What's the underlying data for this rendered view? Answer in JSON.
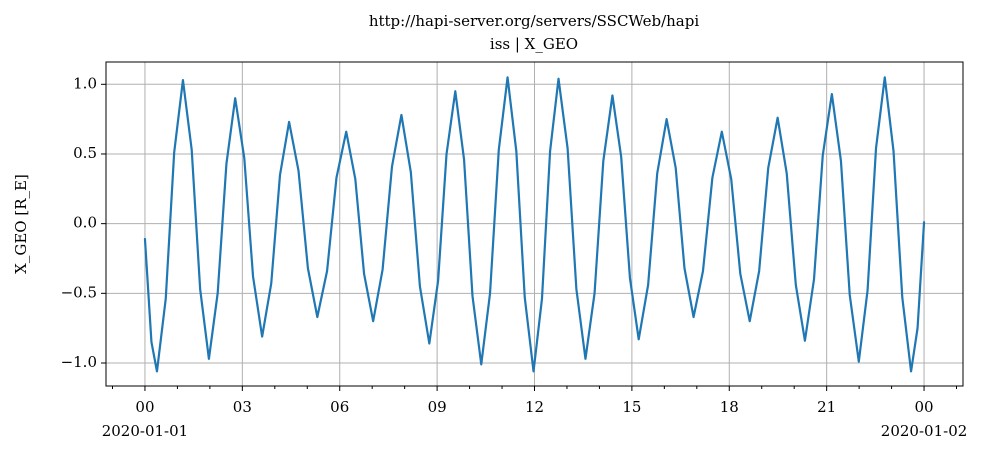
{
  "chart_data": {
    "type": "line",
    "title": "http://hapi-server.org/servers/SSCWeb/hapi",
    "subtitle": "iss | X_GEO",
    "ylabel": "X_GEO [R_E]",
    "color": "#1f77b4",
    "grid": true,
    "xlim": [
      -1.2,
      25.2
    ],
    "ylim": [
      -1.165,
      1.16
    ],
    "xticks": [
      {
        "value": 0,
        "label": "00\n2020-01-01"
      },
      {
        "value": 3,
        "label": "03"
      },
      {
        "value": 6,
        "label": "06"
      },
      {
        "value": 9,
        "label": "09"
      },
      {
        "value": 12,
        "label": "12"
      },
      {
        "value": 15,
        "label": "15"
      },
      {
        "value": 18,
        "label": "18"
      },
      {
        "value": 21,
        "label": "21"
      },
      {
        "value": 24,
        "label": "00\n2020-01-02"
      }
    ],
    "xminorticks": [
      -1,
      1,
      2,
      4,
      5,
      7,
      8,
      10,
      11,
      13,
      14,
      16,
      17,
      19,
      20,
      22,
      23,
      25
    ],
    "yticks": [
      {
        "value": -1,
        "label": "−1.0"
      },
      {
        "value": -0.5,
        "label": "−0.5"
      },
      {
        "value": 0,
        "label": "0.0"
      },
      0.5,
      {
        "value": 1,
        "label": "1.0"
      }
    ],
    "x": [
      0,
      0.2,
      0.37,
      0.64,
      0.9,
      1.17,
      1.44,
      1.7,
      1.97,
      2.24,
      2.51,
      2.78,
      3.06,
      3.33,
      3.61,
      3.89,
      4.16,
      4.44,
      4.73,
      5.02,
      5.31,
      5.61,
      5.9,
      6.2,
      6.48,
      6.75,
      7.03,
      7.32,
      7.61,
      7.9,
      8.19,
      8.47,
      8.76,
      9.03,
      9.29,
      9.56,
      9.83,
      10.09,
      10.36,
      10.63,
      10.9,
      11.17,
      11.44,
      11.7,
      11.97,
      12.23,
      12.48,
      12.74,
      13.02,
      13.29,
      13.57,
      13.85,
      14.12,
      14.4,
      14.67,
      14.94,
      15.21,
      15.5,
      15.78,
      16.07,
      16.35,
      16.62,
      16.9,
      17.19,
      17.48,
      17.77,
      18.06,
      18.34,
      18.63,
      18.92,
      19.2,
      19.49,
      19.77,
      20.05,
      20.33,
      20.61,
      20.88,
      21.16,
      21.44,
      21.71,
      21.99,
      22.26,
      22.52,
      22.79,
      23.06,
      23.33,
      23.6,
      23.8,
      24.0
    ],
    "values": [
      -0.11,
      -0.85,
      -1.06,
      -0.54,
      0.51,
      1.03,
      0.53,
      -0.47,
      -0.97,
      -0.5,
      0.43,
      0.9,
      0.47,
      -0.38,
      -0.81,
      -0.43,
      0.35,
      0.73,
      0.38,
      -0.32,
      -0.67,
      -0.34,
      0.33,
      0.66,
      0.32,
      -0.36,
      -0.7,
      -0.33,
      0.41,
      0.78,
      0.37,
      -0.45,
      -0.86,
      -0.41,
      0.5,
      0.95,
      0.46,
      -0.52,
      -1.01,
      -0.5,
      0.53,
      1.05,
      0.52,
      -0.53,
      -1.06,
      -0.54,
      0.52,
      1.04,
      0.54,
      -0.47,
      -0.97,
      -0.5,
      0.45,
      0.92,
      0.48,
      -0.39,
      -0.83,
      -0.44,
      0.36,
      0.75,
      0.4,
      -0.32,
      -0.67,
      -0.34,
      0.33,
      0.66,
      0.32,
      -0.36,
      -0.7,
      -0.34,
      0.4,
      0.76,
      0.36,
      -0.44,
      -0.84,
      -0.4,
      0.49,
      0.93,
      0.45,
      -0.51,
      -0.99,
      -0.48,
      0.54,
      1.05,
      0.52,
      -0.53,
      -1.06,
      -0.75,
      0.01
    ]
  }
}
